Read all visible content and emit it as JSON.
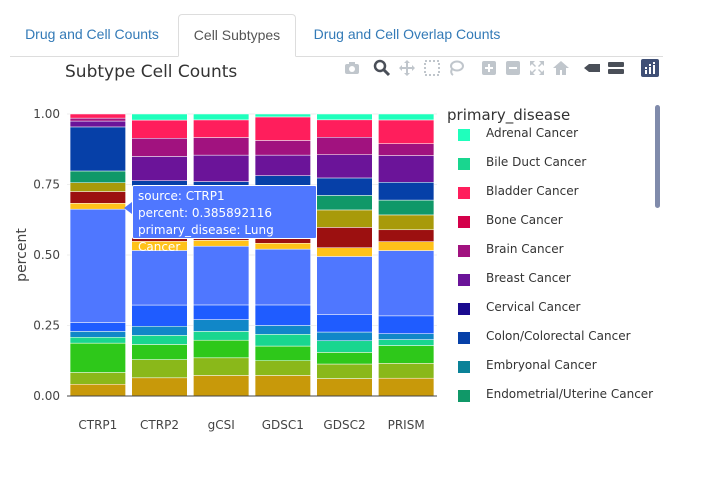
{
  "tabs": [
    {
      "label": "Drug and Cell Counts",
      "active": false
    },
    {
      "label": "Cell Subtypes",
      "active": true
    },
    {
      "label": "Drug and Cell Overlap Counts",
      "active": false
    }
  ],
  "modebar": [
    "camera-icon",
    "zoom-icon",
    "pan-icon",
    "box-select-icon",
    "lasso-icon",
    "zoom-in-icon",
    "zoom-out-icon",
    "autoscale-icon",
    "reset-axes-icon",
    "spike-lines-icon",
    "compare-hover-icon",
    "plotly-logo-icon"
  ],
  "legend": {
    "title": "primary_disease",
    "items": [
      {
        "label": "Adrenal Cancer",
        "color": "#1fffbc"
      },
      {
        "label": "Bile Duct Cancer",
        "color": "#19d68f"
      },
      {
        "label": "Bladder Cancer",
        "color": "#ff1e5c"
      },
      {
        "label": "Bone Cancer",
        "color": "#d4004a"
      },
      {
        "label": "Brain Cancer",
        "color": "#a1127f"
      },
      {
        "label": "Breast Cancer",
        "color": "#6b1499"
      },
      {
        "label": "Cervical Cancer",
        "color": "#1a0a8f"
      },
      {
        "label": "Colon/Colorectal Cancer",
        "color": "#0640a8"
      },
      {
        "label": "Embryonal Cancer",
        "color": "#0a8298"
      },
      {
        "label": "Endometrial/Uterine Cancer",
        "color": "#109868"
      }
    ]
  },
  "tooltip": {
    "line1": "source: CTRP1",
    "line2": "percent: 0.385892116",
    "line3": "primary_disease: Lung Cancer"
  },
  "chart_data": {
    "type": "bar",
    "stacked": true,
    "title": "Subtype Cell Counts",
    "ylabel": "percent",
    "xlabel": "",
    "ylim": [
      0,
      1
    ],
    "yticks": [
      "0.00",
      "0.25",
      "0.50",
      "0.75",
      "1.00"
    ],
    "categories": [
      "CTRP1",
      "CTRP2",
      "gCSI",
      "GDSC1",
      "GDSC2",
      "PRISM"
    ],
    "series": [
      {
        "color": "#c8990a",
        "values": [
          0.04,
          0.06,
          0.07,
          0.07,
          0.06,
          0.06
        ]
      },
      {
        "color": "#8ab81a",
        "values": [
          0.04,
          0.06,
          0.06,
          0.05,
          0.05,
          0.05
        ]
      },
      {
        "color": "#2ec81a",
        "values": [
          0.1,
          0.05,
          0.06,
          0.05,
          0.04,
          0.06
        ]
      },
      {
        "color": "#19d68f",
        "values": [
          0.02,
          0.03,
          0.03,
          0.04,
          0.04,
          0.02
        ]
      },
      {
        "color": "#1187c8",
        "values": [
          0.02,
          0.03,
          0.04,
          0.03,
          0.03,
          0.02
        ]
      },
      {
        "color": "#1f5cff",
        "values": [
          0.03,
          0.07,
          0.05,
          0.07,
          0.06,
          0.06
        ]
      },
      {
        "color": "#4f77ff",
        "values": [
          0.386,
          0.18,
          0.2,
          0.19,
          0.2,
          0.22
        ]
      },
      {
        "color": "#ffc21a",
        "values": [
          0.02,
          0.03,
          0.02,
          0.02,
          0.03,
          0.03
        ]
      },
      {
        "color": "#9c1010",
        "values": [
          0.04,
          0.04,
          0.05,
          0.08,
          0.07,
          0.04
        ]
      },
      {
        "color": "#a89a0a",
        "values": [
          0.03,
          0.05,
          0.05,
          0.05,
          0.06,
          0.05
        ]
      },
      {
        "color": "#109868",
        "values": [
          0.04,
          0.05,
          0.04,
          0.05,
          0.05,
          0.05
        ]
      },
      {
        "color": "#0640a8",
        "values": [
          0.15,
          0.06,
          0.06,
          0.05,
          0.06,
          0.06
        ]
      },
      {
        "color": "#6b1499",
        "values": [
          0.02,
          0.08,
          0.09,
          0.07,
          0.08,
          0.09
        ]
      },
      {
        "color": "#a1127f",
        "values": [
          0.01,
          0.06,
          0.06,
          0.05,
          0.06,
          0.04
        ]
      },
      {
        "color": "#ff1e5c",
        "values": [
          0.014,
          0.06,
          0.06,
          0.08,
          0.06,
          0.08
        ]
      },
      {
        "color": "#1fffbc",
        "values": [
          0.0,
          0.02,
          0.02,
          0.01,
          0.02,
          0.02
        ]
      }
    ]
  }
}
